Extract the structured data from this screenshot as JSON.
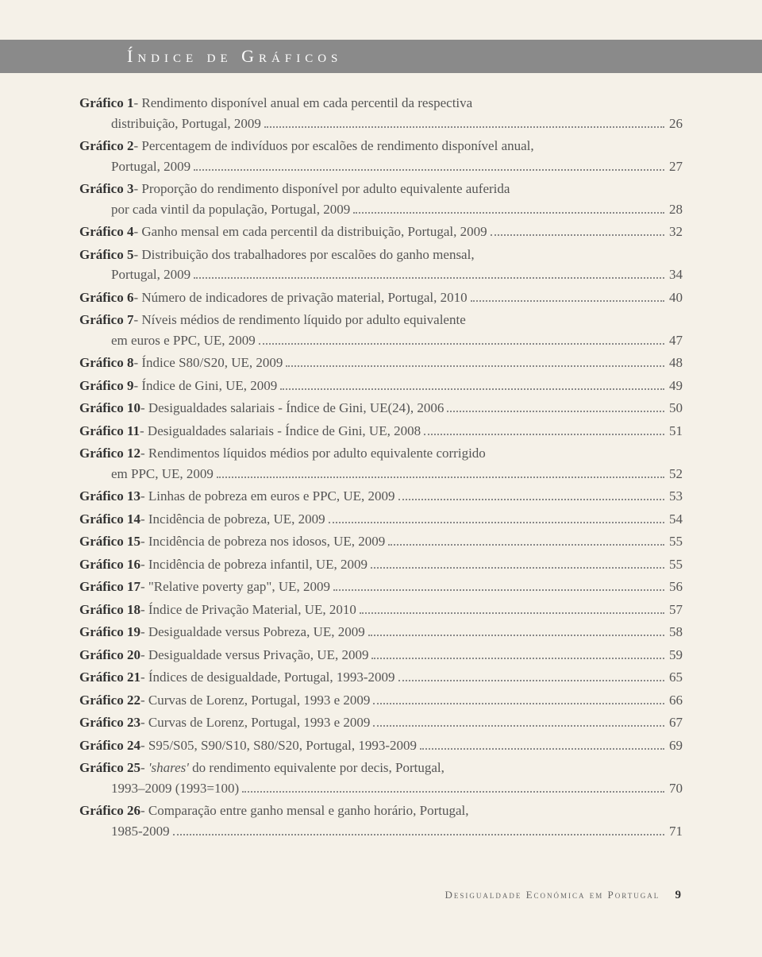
{
  "title": "Índice de Gráficos",
  "entries": [
    {
      "label": "Gráfico 1",
      "sep": " - ",
      "lines": [
        "Rendimento disponível anual em cada percentil da respectiva",
        "distribuição, Portugal, 2009"
      ],
      "page": "26"
    },
    {
      "label": "Gráfico 2",
      "sep": " - ",
      "lines": [
        "Percentagem de indivíduos por escalões de rendimento disponível anual,",
        "Portugal, 2009"
      ],
      "page": "27"
    },
    {
      "label": "Gráfico 3",
      "sep": " - ",
      "lines": [
        "Proporção do rendimento disponível por adulto equivalente auferida",
        "por cada vintil da população, Portugal, 2009"
      ],
      "page": "28"
    },
    {
      "label": "Gráfico 4",
      "sep": " - ",
      "lines": [
        "Ganho mensal em cada percentil da distribuição, Portugal, 2009"
      ],
      "page": "32"
    },
    {
      "label": "Gráfico 5",
      "sep": " - ",
      "lines": [
        "Distribuição dos trabalhadores por escalões do ganho mensal,",
        "Portugal, 2009"
      ],
      "page": "34"
    },
    {
      "label": "Gráfico 6",
      "sep": " - ",
      "lines": [
        "Número de indicadores de privação material, Portugal, 2010"
      ],
      "page": "40"
    },
    {
      "label": "Gráfico 7",
      "sep": " - ",
      "lines": [
        "Níveis médios de rendimento líquido por adulto equivalente",
        "em euros e PPC, UE, 2009"
      ],
      "page": "47"
    },
    {
      "label": "Gráfico 8",
      "sep": " - ",
      "lines": [
        "Índice S80/S20, UE, 2009"
      ],
      "page": "48"
    },
    {
      "label": "Gráfico 9",
      "sep": " - ",
      "lines": [
        "Índice de Gini, UE, 2009"
      ],
      "page": "49"
    },
    {
      "label": "Gráfico 10",
      "sep": " - ",
      "lines": [
        "Desigualdades salariais - Índice de Gini, UE(24), 2006"
      ],
      "page": "50"
    },
    {
      "label": "Gráfico 11",
      "sep": " - ",
      "lines": [
        "Desigualdades salariais - Índice de Gini, UE, 2008"
      ],
      "page": "51"
    },
    {
      "label": "Gráfico 12",
      "sep": " - ",
      "lines": [
        "Rendimentos líquidos médios por adulto equivalente corrigido",
        "em PPC, UE, 2009"
      ],
      "page": "52"
    },
    {
      "label": "Gráfico 13",
      "sep": " - ",
      "lines": [
        "Linhas de pobreza em euros e PPC, UE, 2009"
      ],
      "page": "53"
    },
    {
      "label": "Gráfico 14",
      "sep": " - ",
      "lines": [
        "Incidência de pobreza, UE, 2009"
      ],
      "page": "54"
    },
    {
      "label": "Gráfico 15",
      "sep": " - ",
      "lines": [
        "Incidência de pobreza nos idosos, UE, 2009"
      ],
      "page": "55"
    },
    {
      "label": "Gráfico 16",
      "sep": " - ",
      "lines": [
        "Incidência de pobreza infantil, UE, 2009"
      ],
      "page": "55"
    },
    {
      "label": "Gráfico 17",
      "sep": " - ",
      "lines": [
        "\"Relative poverty gap\", UE, 2009"
      ],
      "page": "56"
    },
    {
      "label": "Gráfico 18",
      "sep": " - ",
      "lines": [
        "Índice de Privação Material, UE, 2010"
      ],
      "page": "57"
    },
    {
      "label": "Gráfico 19",
      "sep": " - ",
      "lines": [
        "Desigualdade versus Pobreza, UE, 2009"
      ],
      "page": "58"
    },
    {
      "label": "Gráfico 20",
      "sep": " - ",
      "lines": [
        "Desigualdade versus Privação, UE, 2009"
      ],
      "page": "59"
    },
    {
      "label": "Gráfico 21",
      "sep": " - ",
      "lines": [
        "Índices de desigualdade, Portugal, 1993-2009"
      ],
      "page": "65"
    },
    {
      "label": "Gráfico 22",
      "sep": " - ",
      "lines": [
        "Curvas de Lorenz, Portugal, 1993 e 2009"
      ],
      "page": "66"
    },
    {
      "label": "Gráfico 23",
      "sep": " - ",
      "lines": [
        "Curvas de Lorenz, Portugal, 1993 e 2009"
      ],
      "page": "67"
    },
    {
      "label": "Gráfico 24",
      "sep": " - ",
      "lines": [
        "S95/S05, S90/S10, S80/S20, Portugal, 1993-2009"
      ],
      "page": "69"
    },
    {
      "label": "Gráfico 25",
      "sep": " - ",
      "italicWord": "'shares'",
      "lines": [
        " do rendimento equivalente por decis, Portugal,",
        "1993–2009 (1993=100)"
      ],
      "page": "70"
    },
    {
      "label": "Gráfico 26",
      "sep": " - ",
      "lines": [
        "Comparação entre ganho mensal e ganho horário, Portugal,",
        "1985-2009"
      ],
      "page": "71"
    }
  ],
  "footer": {
    "text": "Desigualdade Económica em Portugal",
    "page": "9"
  },
  "colors": {
    "pageBg": "#f5f1e8",
    "barBg": "#8a8a8a",
    "barText": "#ffffff",
    "labelText": "#333333",
    "descText": "#555555",
    "dots": "#888888"
  }
}
